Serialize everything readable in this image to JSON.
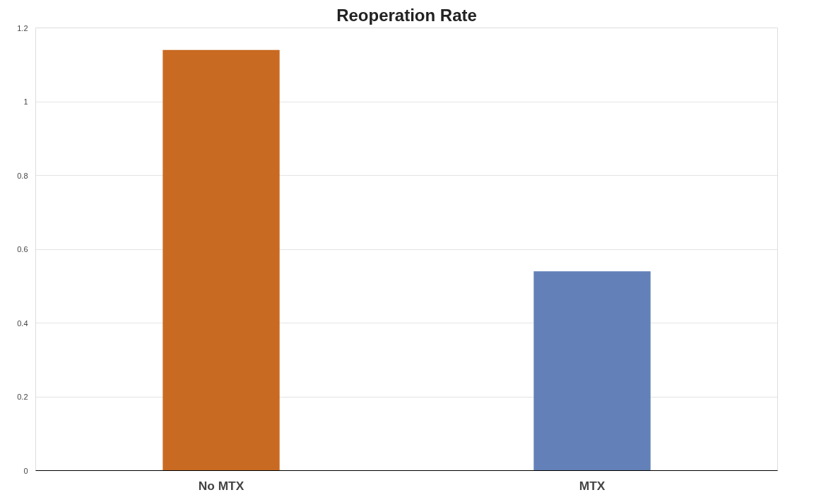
{
  "chart_data": {
    "type": "bar",
    "title": "Reoperation Rate",
    "categories": [
      "No MTX",
      "MTX"
    ],
    "values": [
      1.14,
      0.54
    ],
    "colors": [
      "#c96a22",
      "#6381b8"
    ],
    "ylim": [
      0,
      1.2
    ],
    "yticks": [
      0,
      0.2,
      0.4,
      0.6,
      0.8,
      1,
      1.2
    ],
    "grid": "y"
  }
}
